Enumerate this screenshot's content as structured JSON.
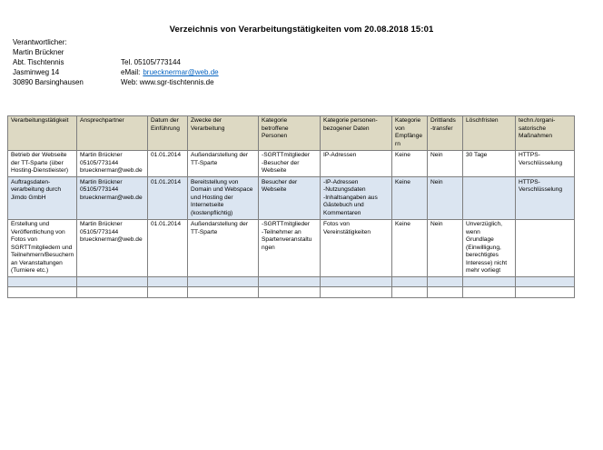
{
  "title": "Verzeichnis von Verarbeitungstätigkeiten vom 20.08.2018 15:01",
  "contact": {
    "label": "Verantwortlicher:",
    "name": "Martin Brückner",
    "dept": "Abt. Tischtennis",
    "street": "Jasminweg 14",
    "city": "30890 Barsinghausen",
    "tel": "Tel. 05105/773144",
    "email_label": "eMail:",
    "email": "bruecknermar@web.de",
    "web": "Web: www.sgr-tischtennis.de"
  },
  "table": {
    "headers": [
      "Verarbeitungstätigkeit",
      "Ansprechpartner",
      "Datum der\nEinführung",
      "Zwecke der\nVerarbeitung",
      "Kategorie\nbetroffene\nPersonen",
      "Kategorie personen-\nbezogener Daten",
      "Kategorie\nvon\nEmpfänge\nrn",
      "Drittlands\n-transfer",
      "Löschfristen",
      "techn./organi-\nsatorische\nMaßnahmen"
    ],
    "rows": [
      [
        "Betrieb der Webseite\nder TT-Sparte (über\nHosting-Dienstleister)",
        "Martin Brückner\n05105/773144\nbruecknermar@web.de",
        "01.01.2014",
        "Außendarstellung der\nTT-Sparte",
        "-SGRTTmitglieder\n-Besucher der\nWebseite",
        "IP-Adressen",
        "Keine",
        "Nein",
        "30 Tage",
        "HTTPS-\nVerschlüsselung"
      ],
      [
        "Auftragsdaten-\nverarbeitung durch\nJimdo GmbH",
        "Martin Brückner\n05105/773144\nbruecknermar@web.de",
        "01.01.2014",
        "Bereitstellung von\nDomain und Webspace\nund Hosting der\nInternetseite\n(kostenpflichtig)",
        "Besucher der\nWebseite",
        "-IP-Adressen\n-Nutzungsdaten\n-Inhaltsangaben aus\nGästebuch und\nKommentaren",
        "Keine",
        "Nein",
        "",
        "HTTPS-\nVerschlüsselung"
      ],
      [
        "Erstellung und\nVeröffentlichung von\nFotos von\nSGRTTmitgliedern und\nTeilnehmern/Besuchern\nan Veranstaltungen\n(Turniere etc.)",
        "Martin Brückner\n05105/773144\nbruecknermar@web.de",
        "01.01.2014",
        "Außendarstellung der\nTT-Sparte",
        "-SGRTTmitglieder\n-Teilnehmer an\nSpartenveranstaltu\nngen",
        "Fotos von\nVereinstätigkeiten",
        "Keine",
        "Nein",
        "Unverzüglich,\nwenn\nGrundlage\n(Einwilligung,\nberechtigtes\nInteresse) nicht\nmehr vorliegt",
        ""
      ],
      [
        "",
        "",
        "",
        "",
        "",
        "",
        "",
        "",
        "",
        ""
      ],
      [
        "",
        "",
        "",
        "",
        "",
        "",
        "",
        "",
        "",
        ""
      ]
    ]
  },
  "colors": {
    "table_header_bg": "#ddd9c3",
    "alt_row_bg": "#dbe5f1",
    "link_blue": "#0563c1",
    "table_border": "#7f7f7f"
  }
}
